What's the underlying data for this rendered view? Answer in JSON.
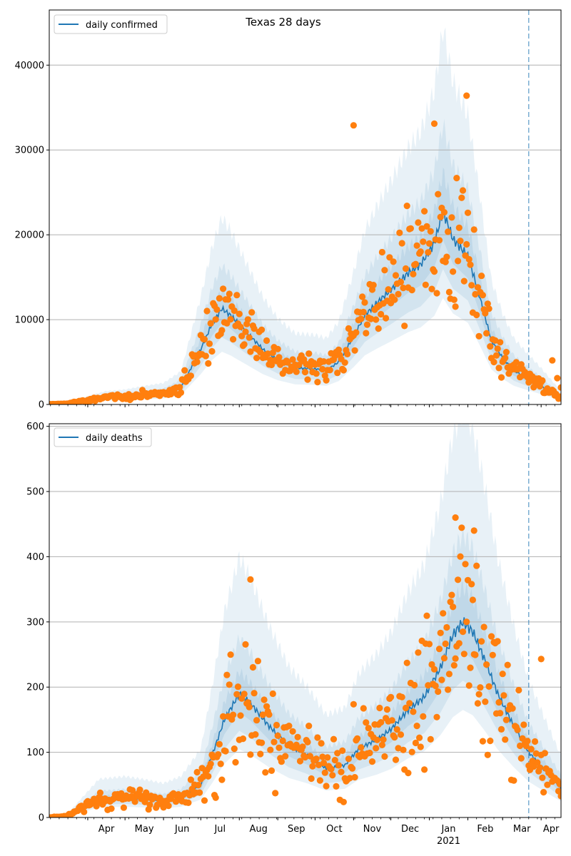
{
  "figure": {
    "title": "Texas 28 days"
  },
  "colors": {
    "model_line": "#1f77b4",
    "observed_points": "#ff7f0e",
    "band": "#1f77b4",
    "grid": "#b0b0b0",
    "vline": "#1f77b4"
  },
  "chart_data": [
    {
      "type": "line",
      "title": "Texas 28 days",
      "xlabel": "",
      "ylabel": "",
      "x_range": [
        "2020-03-01",
        "2021-04-17"
      ],
      "ylim": [
        0,
        46500
      ],
      "y_ticks": [
        0,
        10000,
        20000,
        30000,
        40000
      ],
      "grid": "y",
      "legend": {
        "placement": "top-left",
        "entries": [
          "daily confirmed"
        ]
      },
      "series": [
        {
          "name": "daily confirmed",
          "model_points": [
            [
              "2020-03-01",
              20
            ],
            [
              "2020-03-15",
              80
            ],
            [
              "2020-04-01",
              500
            ],
            [
              "2020-04-15",
              800
            ],
            [
              "2020-05-01",
              900
            ],
            [
              "2020-05-15",
              1100
            ],
            [
              "2020-06-01",
              1300
            ],
            [
              "2020-06-15",
              2000
            ],
            [
              "2020-07-01",
              6500
            ],
            [
              "2020-07-10",
              9500
            ],
            [
              "2020-07-18",
              11300
            ],
            [
              "2020-07-25",
              10500
            ],
            [
              "2020-08-05",
              8800
            ],
            [
              "2020-08-20",
              6500
            ],
            [
              "2020-09-01",
              5200
            ],
            [
              "2020-09-15",
              4300
            ],
            [
              "2020-10-01",
              4200
            ],
            [
              "2020-10-10",
              4000
            ],
            [
              "2020-10-20",
              5000
            ],
            [
              "2020-11-01",
              8000
            ],
            [
              "2020-11-10",
              10500
            ],
            [
              "2020-11-20",
              12000
            ],
            [
              "2020-12-01",
              13500
            ],
            [
              "2020-12-15",
              15500
            ],
            [
              "2020-12-25",
              16500
            ],
            [
              "2021-01-05",
              19000
            ],
            [
              "2021-01-12",
              22800
            ],
            [
              "2021-01-20",
              19500
            ],
            [
              "2021-02-01",
              17500
            ],
            [
              "2021-02-10",
              13000
            ],
            [
              "2021-02-20",
              7500
            ],
            [
              "2021-03-01",
              5500
            ],
            [
              "2021-03-10",
              4000
            ],
            [
              "2021-03-22",
              3000
            ],
            [
              "2021-04-01",
              2200
            ],
            [
              "2021-04-17",
              800
            ]
          ],
          "band_multipliers": [
            [
              0.85,
              1.2
            ],
            [
              0.7,
              1.45
            ],
            [
              0.55,
              1.95
            ]
          ],
          "observations_summary": {
            "outliers": [
              [
                "2020-11-01",
                32900
              ],
              [
                "2021-01-31",
                36400
              ],
              [
                "2021-01-05",
                33100
              ]
            ],
            "last_points": [
              [
                "2021-04-10",
                5200
              ],
              [
                "2021-04-14",
                3100
              ],
              [
                "2021-04-17",
                2000
              ]
            ]
          }
        }
      ],
      "forecast_start": "2021-03-22"
    },
    {
      "type": "line",
      "title": "",
      "xlabel": "",
      "ylabel": "",
      "x_range": [
        "2020-03-01",
        "2021-04-17"
      ],
      "ylim": [
        0,
        604
      ],
      "y_ticks": [
        0,
        100,
        200,
        300,
        400,
        500,
        600
      ],
      "x_tick_labels": [
        "Apr",
        "May",
        "Jun",
        "Jul",
        "Aug",
        "Sep",
        "Oct",
        "Nov",
        "Dec",
        "Jan",
        "Feb",
        "Mar",
        "Apr"
      ],
      "x_year_label": "2021",
      "grid": "y",
      "legend": {
        "placement": "top-left",
        "entries": [
          "daily deaths"
        ]
      },
      "series": [
        {
          "name": "daily deaths",
          "model_points": [
            [
              "2020-03-01",
              0
            ],
            [
              "2020-03-15",
              2
            ],
            [
              "2020-03-25",
              12
            ],
            [
              "2020-04-10",
              28
            ],
            [
              "2020-05-01",
              30
            ],
            [
              "2020-05-15",
              28
            ],
            [
              "2020-06-01",
              25
            ],
            [
              "2020-06-15",
              30
            ],
            [
              "2020-07-01",
              50
            ],
            [
              "2020-07-10",
              95
            ],
            [
              "2020-07-20",
              150
            ],
            [
              "2020-08-01",
              190
            ],
            [
              "2020-08-10",
              175
            ],
            [
              "2020-08-25",
              140
            ],
            [
              "2020-09-10",
              110
            ],
            [
              "2020-09-25",
              95
            ],
            [
              "2020-10-10",
              75
            ],
            [
              "2020-10-25",
              80
            ],
            [
              "2020-11-05",
              105
            ],
            [
              "2020-11-20",
              120
            ],
            [
              "2020-12-01",
              135
            ],
            [
              "2020-12-15",
              165
            ],
            [
              "2020-12-28",
              185
            ],
            [
              "2021-01-10",
              230
            ],
            [
              "2021-01-20",
              280
            ],
            [
              "2021-01-28",
              300
            ],
            [
              "2021-02-05",
              285
            ],
            [
              "2021-02-15",
              240
            ],
            [
              "2021-02-25",
              190
            ],
            [
              "2021-03-10",
              140
            ],
            [
              "2021-03-22",
              100
            ],
            [
              "2021-04-05",
              70
            ],
            [
              "2021-04-17",
              45
            ]
          ],
          "band_multipliers": [
            [
              0.85,
              1.18
            ],
            [
              0.7,
              1.45
            ],
            [
              0.55,
              2.1
            ]
          ],
          "observations_summary": {
            "outliers": [
              [
                "2020-08-10",
                365
              ],
              [
                "2021-01-22",
                460
              ],
              [
                "2021-02-06",
                440
              ],
              [
                "2021-04-01",
                243
              ]
            ],
            "first_points": [
              [
                "2020-03-01",
                0
              ],
              [
                "2020-03-15",
                2
              ],
              [
                "2020-04-01",
                25
              ]
            ]
          }
        }
      ],
      "forecast_start": "2021-03-22"
    }
  ]
}
